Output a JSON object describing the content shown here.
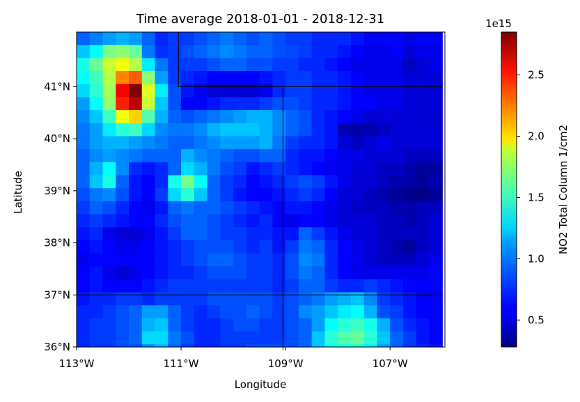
{
  "chart_data": {
    "type": "heatmap",
    "title": "Time average 2018-01-01 - 2018-12-31",
    "xlabel": "Longitude",
    "ylabel": "Latitude",
    "xlim": [
      -113,
      -105.95
    ],
    "ylim": [
      36,
      42.05
    ],
    "x_ticks": [
      {
        "value": -113,
        "label": "113°W"
      },
      {
        "value": -111,
        "label": "111°W"
      },
      {
        "value": -109,
        "label": "109°W"
      },
      {
        "value": -107,
        "label": "107°W"
      }
    ],
    "y_ticks": [
      {
        "value": 36,
        "label": "36°N"
      },
      {
        "value": 37,
        "label": "37°N"
      },
      {
        "value": 38,
        "label": "38°N"
      },
      {
        "value": 39,
        "label": "39°N"
      },
      {
        "value": 40,
        "label": "40°N"
      },
      {
        "value": 41,
        "label": "41°N"
      }
    ],
    "grid": false,
    "cell_size_deg": 0.25,
    "grid_note": "rows run from north (top, 42.0°N) to south; columns from 113°W eastward",
    "colormap": "jet",
    "colorbar": {
      "label": "NO2 Total Column 1/cm2",
      "exponent": "1e15",
      "min": 0.28,
      "max": 2.85,
      "ticks": [
        {
          "value": 0.5,
          "label": "0.5"
        },
        {
          "value": 1.0,
          "label": "1.0"
        },
        {
          "value": 1.5,
          "label": "1.5"
        },
        {
          "value": 2.0,
          "label": "2.0"
        },
        {
          "value": 2.5,
          "label": "2.5"
        }
      ]
    },
    "values_1e15": [
      [
        0.85,
        0.92,
        1.0,
        1.05,
        1.0,
        0.85,
        0.7,
        0.75,
        0.75,
        0.8,
        0.85,
        0.9,
        0.85,
        0.8,
        0.85,
        0.8,
        0.75,
        0.75,
        0.7,
        0.7,
        0.7,
        0.65,
        0.6,
        0.6,
        0.6,
        0.55,
        0.6,
        0.6
      ],
      [
        1.1,
        1.25,
        1.55,
        1.6,
        1.5,
        0.9,
        0.72,
        0.75,
        0.8,
        0.85,
        0.9,
        0.95,
        0.9,
        0.85,
        0.85,
        0.8,
        0.78,
        0.75,
        0.7,
        0.7,
        0.65,
        0.6,
        0.55,
        0.55,
        0.6,
        0.5,
        0.55,
        0.55
      ],
      [
        1.3,
        1.5,
        1.75,
        1.85,
        1.7,
        1.2,
        0.9,
        0.75,
        0.75,
        0.75,
        0.8,
        0.85,
        0.85,
        0.8,
        0.8,
        0.75,
        0.75,
        0.7,
        0.7,
        0.65,
        0.6,
        0.55,
        0.55,
        0.55,
        0.55,
        0.45,
        0.5,
        0.55
      ],
      [
        1.25,
        1.4,
        1.7,
        2.2,
        2.3,
        1.6,
        1.0,
        0.75,
        0.7,
        0.65,
        0.6,
        0.6,
        0.6,
        0.6,
        0.65,
        0.7,
        0.75,
        0.75,
        0.7,
        0.7,
        0.65,
        0.6,
        0.55,
        0.55,
        0.55,
        0.5,
        0.5,
        0.5
      ],
      [
        1.15,
        1.35,
        1.65,
        2.55,
        2.85,
        1.8,
        1.2,
        0.8,
        0.65,
        0.55,
        0.5,
        0.48,
        0.5,
        0.5,
        0.55,
        0.7,
        0.75,
        0.75,
        0.7,
        0.7,
        0.65,
        0.6,
        0.55,
        0.55,
        0.55,
        0.5,
        0.5,
        0.5
      ],
      [
        1.0,
        1.25,
        1.6,
        2.45,
        2.7,
        1.75,
        1.1,
        0.8,
        0.6,
        0.6,
        0.65,
        0.7,
        0.7,
        0.7,
        0.75,
        0.8,
        0.8,
        0.75,
        0.7,
        0.7,
        0.65,
        0.6,
        0.6,
        0.55,
        0.55,
        0.5,
        0.5,
        0.5
      ],
      [
        0.95,
        1.1,
        1.4,
        1.85,
        2.0,
        1.45,
        1.05,
        0.85,
        0.8,
        0.85,
        0.9,
        0.95,
        1.0,
        1.05,
        1.05,
        0.95,
        0.85,
        0.8,
        0.7,
        0.65,
        0.6,
        0.55,
        0.5,
        0.5,
        0.5,
        0.5,
        0.5,
        0.48
      ],
      [
        0.9,
        1.0,
        1.2,
        1.35,
        1.4,
        1.15,
        0.95,
        0.9,
        0.9,
        0.95,
        1.05,
        1.1,
        1.1,
        1.1,
        1.05,
        0.95,
        0.85,
        0.8,
        0.7,
        0.65,
        0.4,
        0.38,
        0.4,
        0.45,
        0.5,
        0.5,
        0.5,
        0.5
      ],
      [
        0.9,
        1.0,
        1.05,
        1.05,
        1.0,
        0.95,
        0.9,
        0.85,
        0.85,
        0.9,
        0.95,
        1.0,
        1.0,
        1.0,
        1.05,
        0.9,
        0.75,
        0.7,
        0.7,
        0.65,
        0.5,
        0.45,
        0.5,
        0.55,
        0.5,
        0.5,
        0.5,
        0.5
      ],
      [
        0.85,
        0.95,
        1.0,
        0.95,
        0.9,
        0.85,
        0.85,
        0.85,
        1.05,
        0.95,
        0.9,
        0.85,
        0.8,
        0.8,
        0.85,
        0.85,
        0.7,
        0.65,
        0.65,
        0.6,
        0.55,
        0.55,
        0.5,
        0.5,
        0.5,
        0.45,
        0.45,
        0.45
      ],
      [
        0.85,
        1.05,
        1.25,
        0.95,
        0.7,
        0.65,
        0.7,
        0.85,
        1.15,
        1.05,
        0.9,
        0.8,
        0.75,
        0.65,
        0.7,
        0.75,
        0.7,
        0.65,
        0.6,
        0.55,
        0.55,
        0.5,
        0.5,
        0.45,
        0.45,
        0.4,
        0.35,
        0.38
      ],
      [
        0.85,
        1.1,
        1.3,
        0.85,
        0.65,
        0.6,
        0.7,
        1.3,
        1.55,
        1.25,
        0.85,
        0.75,
        0.7,
        0.6,
        0.65,
        0.7,
        0.75,
        0.8,
        0.75,
        0.65,
        0.55,
        0.5,
        0.5,
        0.45,
        0.4,
        0.38,
        0.35,
        0.4
      ],
      [
        0.8,
        0.9,
        0.95,
        0.8,
        0.65,
        0.6,
        0.75,
        1.15,
        1.35,
        1.1,
        0.85,
        0.75,
        0.65,
        0.6,
        0.6,
        0.65,
        0.7,
        0.75,
        0.7,
        0.6,
        0.5,
        0.5,
        0.45,
        0.4,
        0.35,
        0.32,
        0.3,
        0.35
      ],
      [
        0.75,
        0.85,
        0.8,
        0.7,
        0.6,
        0.55,
        0.65,
        0.85,
        0.9,
        0.85,
        0.85,
        0.8,
        0.75,
        0.7,
        0.65,
        0.6,
        0.65,
        0.65,
        0.6,
        0.55,
        0.5,
        0.45,
        0.45,
        0.45,
        0.4,
        0.4,
        0.42,
        0.45
      ],
      [
        0.7,
        0.75,
        0.7,
        0.65,
        0.6,
        0.6,
        0.7,
        0.8,
        0.85,
        0.85,
        0.8,
        0.75,
        0.7,
        0.65,
        0.7,
        0.6,
        0.55,
        0.6,
        0.6,
        0.55,
        0.5,
        0.5,
        0.5,
        0.45,
        0.45,
        0.4,
        0.45,
        0.5
      ],
      [
        0.65,
        0.7,
        0.55,
        0.5,
        0.5,
        0.55,
        0.65,
        0.75,
        0.85,
        0.85,
        0.8,
        0.75,
        0.75,
        0.7,
        0.7,
        0.65,
        0.65,
        0.85,
        0.75,
        0.65,
        0.55,
        0.5,
        0.5,
        0.45,
        0.45,
        0.45,
        0.45,
        0.5
      ],
      [
        0.6,
        0.65,
        0.6,
        0.55,
        0.55,
        0.6,
        0.65,
        0.7,
        0.75,
        0.8,
        0.8,
        0.8,
        0.75,
        0.7,
        0.75,
        0.65,
        0.75,
        0.9,
        0.85,
        0.7,
        0.6,
        0.55,
        0.5,
        0.45,
        0.4,
        0.35,
        0.45,
        0.5
      ],
      [
        0.55,
        0.6,
        0.6,
        0.6,
        0.6,
        0.6,
        0.65,
        0.7,
        0.75,
        0.8,
        0.85,
        0.85,
        0.8,
        0.75,
        0.75,
        0.7,
        0.8,
        0.95,
        0.9,
        0.7,
        0.6,
        0.55,
        0.5,
        0.45,
        0.45,
        0.45,
        0.5,
        0.55
      ],
      [
        0.6,
        0.65,
        0.55,
        0.5,
        0.55,
        0.6,
        0.65,
        0.7,
        0.7,
        0.75,
        0.8,
        0.8,
        0.8,
        0.75,
        0.75,
        0.7,
        0.8,
        0.9,
        0.85,
        0.7,
        0.6,
        0.55,
        0.55,
        0.55,
        0.55,
        0.55,
        0.55,
        0.6
      ],
      [
        0.6,
        0.65,
        0.6,
        0.6,
        0.6,
        0.65,
        0.7,
        0.75,
        0.75,
        0.75,
        0.75,
        0.75,
        0.75,
        0.75,
        0.75,
        0.7,
        0.75,
        0.85,
        0.85,
        0.75,
        0.7,
        0.7,
        0.75,
        0.7,
        0.65,
        0.6,
        0.6,
        0.6
      ],
      [
        0.65,
        0.7,
        0.7,
        0.75,
        0.75,
        0.7,
        0.75,
        0.75,
        0.75,
        0.75,
        0.8,
        0.8,
        0.8,
        0.8,
        0.8,
        0.75,
        0.8,
        0.85,
        0.9,
        1.0,
        1.05,
        1.1,
        0.95,
        0.75,
        0.7,
        0.65,
        0.6,
        0.6
      ],
      [
        0.7,
        0.7,
        0.75,
        0.8,
        0.85,
        1.0,
        1.0,
        0.85,
        0.75,
        0.7,
        0.75,
        0.8,
        0.8,
        0.85,
        0.8,
        0.75,
        0.8,
        0.95,
        1.0,
        1.1,
        1.2,
        1.25,
        1.05,
        0.8,
        0.75,
        0.65,
        0.6,
        0.6
      ],
      [
        0.7,
        0.75,
        0.75,
        0.8,
        0.85,
        1.05,
        1.1,
        0.85,
        0.75,
        0.7,
        0.7,
        0.75,
        0.8,
        0.8,
        0.75,
        0.75,
        0.8,
        0.85,
        1.0,
        1.25,
        1.35,
        1.4,
        1.3,
        1.05,
        0.8,
        0.7,
        0.65,
        0.6
      ],
      [
        0.7,
        0.75,
        0.75,
        0.8,
        0.85,
        1.15,
        1.15,
        0.9,
        0.8,
        0.7,
        0.7,
        0.75,
        0.75,
        0.75,
        0.75,
        0.75,
        0.8,
        0.85,
        1.1,
        1.35,
        1.45,
        1.5,
        1.35,
        1.1,
        0.85,
        0.75,
        0.65,
        0.6
      ],
      [
        0.7,
        0.75,
        0.75,
        0.8,
        0.8,
        0.95,
        1.05,
        0.85,
        0.75,
        0.7,
        0.7,
        0.75,
        0.75,
        0.8,
        0.8,
        0.8,
        0.8,
        0.85,
        1.1,
        1.25,
        1.3,
        1.3,
        1.2,
        1.0,
        0.85,
        0.75,
        0.7,
        0.65
      ],
      [
        0.75,
        0.8,
        0.8,
        0.8,
        0.75,
        0.8,
        0.8,
        0.75,
        0.7,
        0.7,
        0.7,
        0.75,
        0.8,
        0.8,
        0.8,
        0.8,
        0.8,
        0.85,
        0.95,
        1.0,
        1.0,
        1.0,
        0.95,
        0.85,
        0.8,
        0.75,
        0.7,
        0.7
      ],
      [
        0.75,
        0.8,
        0.8,
        0.8,
        0.75,
        0.75,
        0.75,
        0.7,
        0.7,
        0.7,
        0.75,
        0.75,
        0.8,
        0.8,
        0.75,
        0.75,
        0.75,
        0.8,
        0.8,
        0.8,
        0.8,
        0.8,
        0.8,
        0.8,
        0.75,
        0.7,
        0.7,
        0.7
      ],
      [
        0.7,
        0.7,
        0.7,
        0.7,
        0.7,
        0.7,
        0.7,
        0.7,
        0.7,
        0.7,
        0.7,
        0.7,
        0.7,
        0.7,
        0.7,
        0.7,
        0.7,
        0.7,
        0.7,
        0.7,
        0.7,
        0.7,
        0.7,
        0.7,
        0.7,
        0.7,
        0.7,
        0.7
      ]
    ],
    "boundary_lines": [
      {
        "points": [
          [
            -111.05,
            42.05
          ],
          [
            -111.05,
            41.0
          ],
          [
            -106.0,
            41.0
          ]
        ]
      },
      {
        "points": [
          [
            -109.05,
            41.0
          ],
          [
            -109.05,
            35.95
          ]
        ]
      },
      {
        "points": [
          [
            -113.0,
            37.0
          ],
          [
            -106.0,
            37.0
          ]
        ]
      }
    ]
  }
}
